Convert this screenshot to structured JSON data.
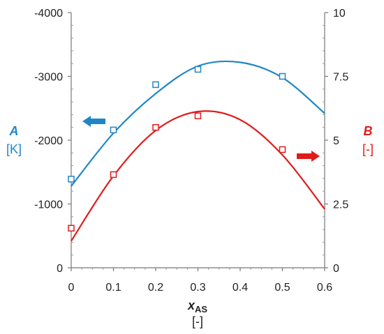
{
  "chart_data": {
    "type": "scatter",
    "x_axis": {
      "name_main": "x",
      "name_sub": "AS",
      "unit": "[-]",
      "range": [
        0,
        0.6
      ],
      "ticks": [
        "0",
        "0.1",
        "0.2",
        "0.3",
        "0.4",
        "0.5",
        "0.6"
      ]
    },
    "y_left": {
      "name": "A",
      "unit": "[K]",
      "range": [
        0,
        -4000
      ],
      "ticks": [
        "0",
        "-1000",
        "-2000",
        "-3000",
        "-4000"
      ],
      "color": "#1f86c6"
    },
    "y_right": {
      "name": "B",
      "unit": "[-]",
      "range": [
        0,
        10
      ],
      "ticks": [
        "0",
        "2.5",
        "5",
        "7.5",
        "10"
      ],
      "color": "#e11b1b"
    },
    "series": [
      {
        "axis": "left",
        "color": "#1f86c6",
        "points": [
          {
            "x": 0.0,
            "y": -1390
          },
          {
            "x": 0.1,
            "y": -2160
          },
          {
            "x": 0.2,
            "y": -2870
          },
          {
            "x": 0.3,
            "y": -3110
          },
          {
            "x": 0.5,
            "y": -3000
          }
        ],
        "fit_curve": [
          {
            "x": 0.0,
            "y": -1280
          },
          {
            "x": 0.1,
            "y": -2110
          },
          {
            "x": 0.2,
            "y": -2730
          },
          {
            "x": 0.3,
            "y": -3160
          },
          {
            "x": 0.4,
            "y": -3220
          },
          {
            "x": 0.5,
            "y": -2980
          },
          {
            "x": 0.6,
            "y": -2420
          }
        ]
      },
      {
        "axis": "right",
        "color": "#e11b1b",
        "points": [
          {
            "x": 0.0,
            "y": 1.55
          },
          {
            "x": 0.1,
            "y": 3.65
          },
          {
            "x": 0.2,
            "y": 5.5
          },
          {
            "x": 0.3,
            "y": 5.95
          },
          {
            "x": 0.5,
            "y": 4.63
          }
        ],
        "fit_curve": [
          {
            "x": 0.0,
            "y": 1.05
          },
          {
            "x": 0.1,
            "y": 3.6
          },
          {
            "x": 0.2,
            "y": 5.38
          },
          {
            "x": 0.3,
            "y": 6.12
          },
          {
            "x": 0.4,
            "y": 5.8
          },
          {
            "x": 0.5,
            "y": 4.42
          },
          {
            "x": 0.6,
            "y": 2.3
          }
        ]
      }
    ],
    "annotations": [
      {
        "type": "arrow",
        "direction": "left",
        "series_axis": "left",
        "color": "#1f86c6"
      },
      {
        "type": "arrow",
        "direction": "right",
        "series_axis": "right",
        "color": "#e11b1b"
      }
    ],
    "grid": false
  }
}
